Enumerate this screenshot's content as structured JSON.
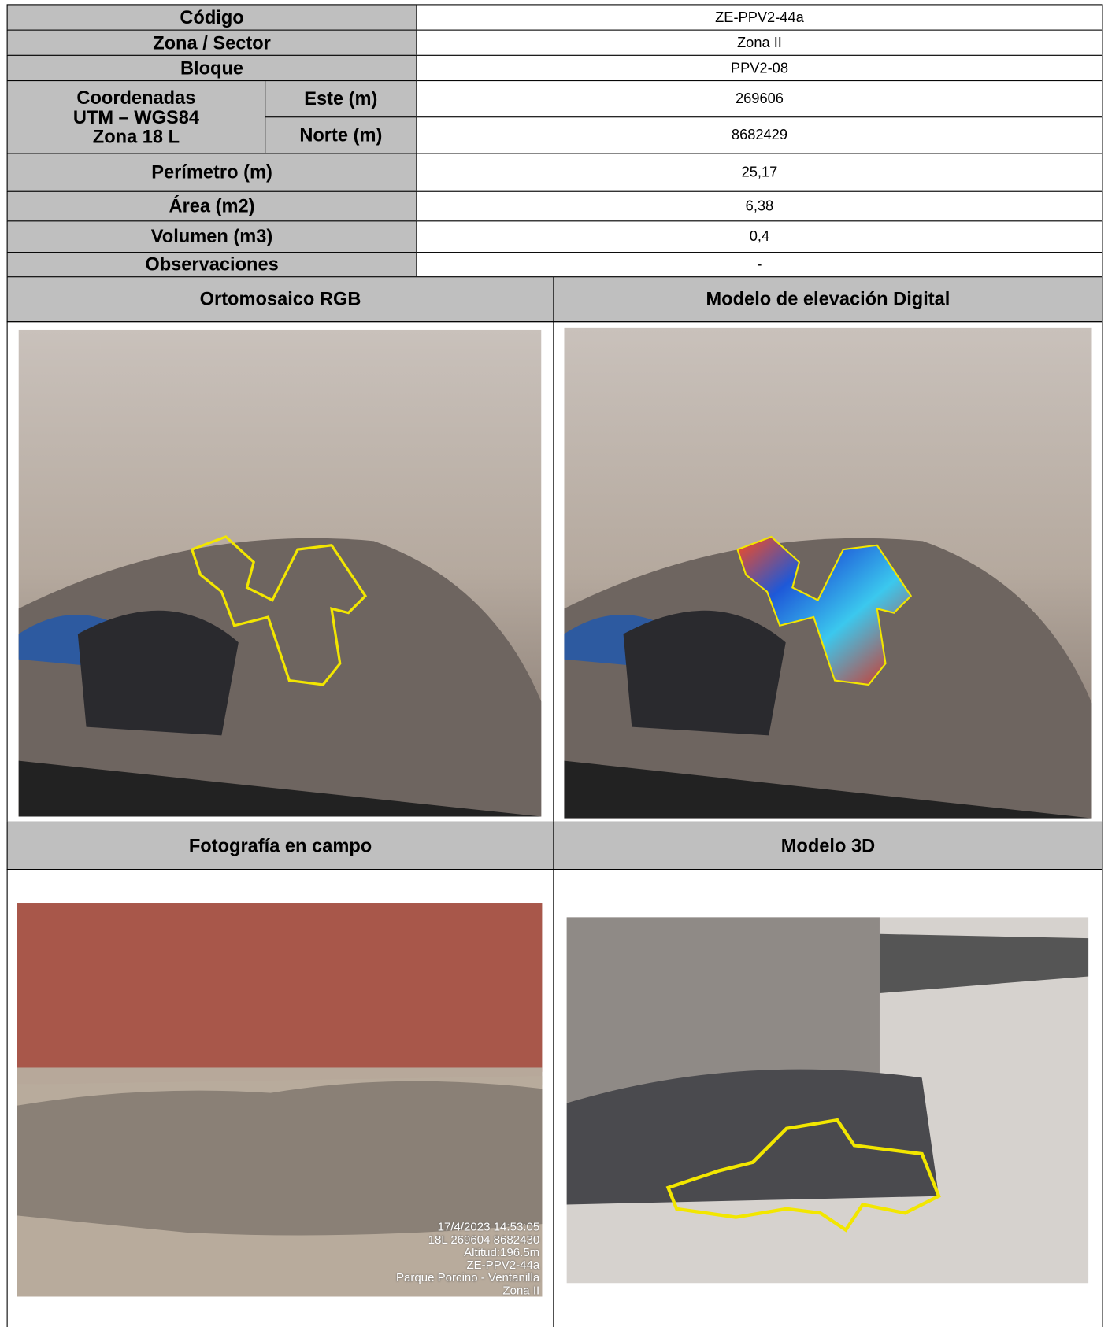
{
  "table": {
    "rows": [
      {
        "label": "Código",
        "value": "ZE-PPV2-44a"
      },
      {
        "label": "Zona / Sector",
        "value": "Zona II"
      },
      {
        "label": "Bloque",
        "value": "PPV2-08"
      }
    ],
    "coordinates": {
      "label": [
        "Coordenadas",
        "UTM – WGS84",
        "Zona 18 L"
      ],
      "este": {
        "label": "Este (m)",
        "value": "269606"
      },
      "norte": {
        "label": "Norte (m)",
        "value": "8682429"
      }
    },
    "rows2": [
      {
        "label": "Perímetro (m)",
        "value": "25,17"
      },
      {
        "label": "Área (m2)",
        "value": "6,38"
      },
      {
        "label": "Volumen (m3)",
        "value": "0,4"
      },
      {
        "label": "Observaciones",
        "value": "-"
      }
    ]
  },
  "panels": [
    {
      "title": "Ortomosaico RGB"
    },
    {
      "title": "Modelo de elevación Digital"
    },
    {
      "title": "Fotografía en campo"
    },
    {
      "title": "Modelo 3D"
    }
  ],
  "photo_stamp": [
    "17/4/2023 14:53:05",
    "18L 269604 8682430",
    "Altitud:196.5m",
    "ZE-PPV2-44a",
    "Parque Porcino - Ventanilla",
    "Zona II"
  ]
}
